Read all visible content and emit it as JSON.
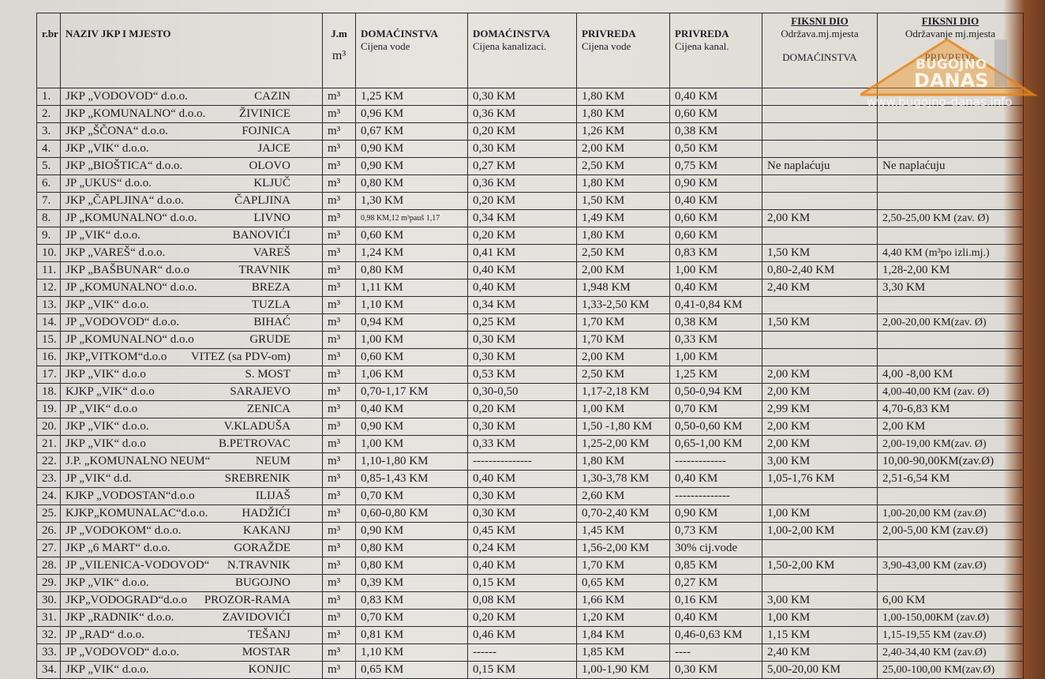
{
  "header": {
    "cells": [
      [
        "r.br"
      ],
      [
        "NAZIV JKP  I MJESTO"
      ],
      [
        "J.m",
        "m³"
      ],
      [
        "DOMAĆINSTVA",
        "Cijena vode"
      ],
      [
        "DOMAĆINSTVA",
        "Cijena kanalizaci."
      ],
      [
        "PRIVREDA",
        "Cijena vode"
      ],
      [
        "PRIVREDA",
        "Cijena kanal."
      ],
      [
        "FIKSNI DIO",
        "Održava.mj.mjesta",
        "DOMAĆINSTVA"
      ],
      [
        "FIKSNI DIO",
        "Održavanje mj.mjesta",
        "PRIVREDA"
      ]
    ]
  },
  "table": {
    "rows": [
      [
        "1.",
        "JKP „VODOVOD“ d.o.o.",
        "CAZIN",
        "m³",
        "1,25 KM",
        "0,30 KM",
        "1,80 KM",
        "0,40 KM",
        null,
        null
      ],
      [
        "2.",
        "JKP „KOMUNALNO“ d.o.o.",
        "ŽIVINICE",
        "m³",
        "0,96 KM",
        "0,36 KM",
        "1,80 KM",
        "0,60 KM",
        null,
        null
      ],
      [
        "3.",
        "JKP „ŠČONA“ d.o.o.",
        "FOJNICA",
        "m³",
        "0,67 KM",
        "0,20 KM",
        "1,26 KM",
        "0,38 KM",
        null,
        null
      ],
      [
        "4.",
        "JKP „VIK“ d.o.o.",
        "JAJCE",
        "m³",
        "0,90 KM",
        "0,30 KM",
        "2,00 KM",
        "0,50 KM",
        null,
        null
      ],
      [
        "5.",
        "JKP „BIOŠTICA“ d.o.o.",
        "OLOVO",
        "m³",
        "0,90 KM",
        "0,27 KM",
        "2,50 KM",
        "0,75 KM",
        "Ne naplaćuju",
        "Ne naplaćuju"
      ],
      [
        "6.",
        "JP „UKUS“ d.o.o.",
        "KLJUČ",
        "m³",
        "0,80 KM",
        "0,36 KM",
        "1,80 KM",
        "0,90 KM",
        null,
        null
      ],
      [
        "7.",
        "JKP „ČAPLJINA“ d.o.o.",
        "ČAPLJINA",
        "m³",
        "1,30 KM",
        "0,20 KM",
        "1,50 KM",
        "0,40 KM",
        null,
        null
      ],
      [
        "8.",
        "JP „KOMUNALNO“ d.o.o.",
        "LIVNO",
        "m³",
        "0,98 KM,12 m³pauš 1,17",
        "0,34 KM",
        "1,49 KM",
        "0,60 KM",
        "2,00 KM",
        "2,50-25,00 KM (zav. Ø)"
      ],
      [
        "9.",
        "JP „VIK“ d.o.o.",
        "BANOVIĆI",
        "m³",
        "0,60 KM",
        "0,20 KM",
        "1,80 KM",
        "0,60 KM",
        null,
        null
      ],
      [
        "10.",
        "JKP „VAREŠ“ d.o.o.",
        "VAREŠ",
        "m³",
        "1,24 KM",
        "0,41 KM",
        "2,50 KM",
        "0,83 KM",
        "1,50 KM",
        "4,40 KM (m³po izli.mj.)"
      ],
      [
        "11.",
        "JKP „BAŠBUNAR“ d.o.o",
        "TRAVNIK",
        "m³",
        "0,80 KM",
        "0,40 KM",
        "2,00 KM",
        "1,00 KM",
        "0,80-2,40 KM",
        "1,28-2,00 KM"
      ],
      [
        "12.",
        "JP „KOMUNALNO“ d.o.o.",
        "BREZA",
        "m³",
        "1,11 KM",
        "0,40 KM",
        "1,948 KM",
        "0,40 KM",
        "2,40 KM",
        "3,30 KM"
      ],
      [
        "13.",
        "JKP „VIK“ d.o.o.",
        "TUZLA",
        "m³",
        "1,10 KM",
        "0,34 KM",
        "1,33-2,50 KM",
        "0,41-0,84 KM",
        null,
        null
      ],
      [
        "14.",
        "JP „VODOVOD“ d.o.o.",
        "BIHAĆ",
        "m³",
        "0,94 KM",
        "0,25 KM",
        "1,70 KM",
        "0,38 KM",
        "1,50 KM",
        "2,00-20,00 KM(zav. Ø)"
      ],
      [
        "15.",
        "JP „KOMUNALNO“ d.o.o",
        "GRUDE",
        "m³",
        "1,00 KM",
        "0,30 KM",
        "1,70 KM",
        "0,33 KM",
        null,
        null
      ],
      [
        "16.",
        "JKP„VITKOM“d.o.o",
        "VITEZ (sa PDV-om)",
        "m³",
        "0,60 KM",
        "0,30 KM",
        "2,00 KM",
        "1,00 KM",
        null,
        null
      ],
      [
        "17.",
        "JKP „VIK“ d.o.o",
        "S. MOST",
        "m³",
        "1,06 KM",
        "0,53 KM",
        "2,50 KM",
        "1,25 KM",
        "2,00 KM",
        "4,00 -8,00 KM"
      ],
      [
        "18.",
        "KJKP „VIK“ d.o.o",
        "SARAJEVO",
        "m³",
        "0,70-1,17 KM",
        "0,30-0,50",
        "1,17-2,18 KM",
        "0,50-0,94 KM",
        "2,00 KM",
        "4,00-40,00 KM (zav. Ø)"
      ],
      [
        "19.",
        "JP „VIK“ d.o.o",
        "ZENICA",
        "m³",
        "0,40 KM",
        "0,20 KM",
        "1,00 KM",
        "0,70 KM",
        "2,99 KM",
        "4,70-6,83 KM"
      ],
      [
        "20.",
        "JKP „VIK“ d.o.o.",
        "V.KLADUŠA",
        "m³",
        "0,90 KM",
        "0,30 KM",
        "1,50 -1,80 KM",
        "0,50-0,60 KM",
        "2,00 KM",
        "2,00 KM"
      ],
      [
        "21.",
        "JKP „VIK“ d.o.o",
        "B.PETROVAC",
        "m³",
        "1,00 KM",
        "0,33 KM",
        "1,25-2,00 KM",
        "0,65-1,00 KM",
        "2,00 KM",
        "2,00-19,00 KM(zav. Ø)"
      ],
      [
        "22.",
        "J.P. „KOMUNALNO NEUM“",
        "NEUM",
        "m³",
        "1,10-1,80 KM",
        "---------------",
        "1,80 KM",
        "-------------",
        "3,00 KM",
        "10,00-90,00KM(zav.Ø)"
      ],
      [
        "23.",
        "JP „VIK“ d.d.",
        "SREBRENIK",
        "m³",
        "0,85-1,43 KM",
        "0,40 KM",
        "1,30-3,78 KM",
        "0,40 KM",
        "1,05-1,76 KM",
        "2,51-6,54 KM"
      ],
      [
        "24.",
        "KJKP „VODOSTAN“d.o.o",
        "ILIJAŠ",
        "m³",
        "0,70 KM",
        "0,30 KM",
        "2,60 KM",
        "--------------",
        null,
        null
      ],
      [
        "25.",
        "KJKP„KOMUNALAC“d.o.o.",
        "HADŽIĆI",
        "m³",
        "0,60-0,80 KM",
        "0,30 KM",
        "0,70-2,40 KM",
        "0,90 KM",
        "1,00 KM",
        "1,00-20,00 KM (zav.Ø)"
      ],
      [
        "26.",
        "JP „VODOKOM“ d.o.o.",
        "KAKANJ",
        "m³",
        "0,90 KM",
        "0,45 KM",
        "1,45 KM",
        "0,73 KM",
        "1,00-2,00 KM",
        "2,00-5,00 KM (zav.Ø)"
      ],
      [
        "27.",
        "JKP „6 MART“ d.o.o.",
        "GORAŽDE",
        "m³",
        "0,80 KM",
        "0,24 KM",
        "1,56-2,00 KM",
        "30% cij.vode",
        null,
        null
      ],
      [
        "28.",
        "JP „VILENICA-VODOVOD“",
        "N.TRAVNIK",
        "m³",
        "0,80 KM",
        "0,40 KM",
        "1,70 KM",
        "0,85 KM",
        "1,50-2,00 KM",
        "3,90-43,00 KM (zav.Ø)"
      ],
      [
        "29.",
        "JKP „VIK“ d.o.o.",
        "BUGOJNO",
        "m³",
        "0,39 KM",
        "0,15 KM",
        "0,65 KM",
        "0,27 KM",
        null,
        null
      ],
      [
        "30.",
        "JKP„VODOGRAD“d.o.o",
        "PROZOR-RAMA",
        "m³",
        "0,83 KM",
        "0,08 KM",
        "1,66 KM",
        "0,16 KM",
        "3,00 KM",
        "6,00 KM"
      ],
      [
        "31.",
        "JKP „RADNIK“   d.o.o.",
        "ZAVIDOVIĆI",
        "m³",
        "0,70 KM",
        "0,20 KM",
        "1,20 KM",
        "0,40 KM",
        "1,00 KM",
        "1,00-150,00KM (zav.Ø)"
      ],
      [
        "32.",
        "JP „RAD“ d.o.o.",
        "TEŠANJ",
        "m³",
        "0,81 KM",
        "0,46 KM",
        "1,84 KM",
        "0,46-0,63 KM",
        "1,15 KM",
        "1,15-19,55 KM (zav.Ø)"
      ],
      [
        "33.",
        "JP „VODOVOD“ d.o.o.",
        "MOSTAR",
        "m³",
        "1,10 KM",
        "------",
        "1,85 KM",
        "----",
        "2,40 KM",
        "2,40-34,40 KM (zav.Ø)"
      ],
      [
        "34.",
        "JKP „VIK“ d.o.o.",
        "KONJIC",
        "m³",
        "0,65 KM",
        "0,15 KM",
        "1,00-1,90 KM",
        "0,30 KM",
        "5,00-20,00 KM",
        "25,00-100,00 KM(zav.Ø)"
      ]
    ]
  },
  "watermark": {
    "town": "BUGOJNO",
    "name": "DANAS",
    "url": "www.bugojno-danas.info"
  }
}
